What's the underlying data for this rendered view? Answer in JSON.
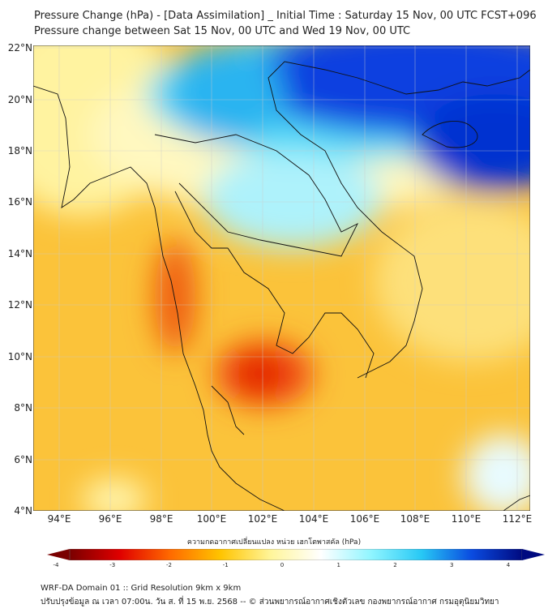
{
  "title": {
    "line1": "Pressure Change (hPa) - [Data Assimilation] _ Initial Time : Saturday 15 Nov, 00 UTC FCST+096",
    "line2": "Pressure change between Sat 15 Nov, 00 UTC and Wed 19 Nov, 00 UTC"
  },
  "lat_labels": [
    "22°N",
    "20°N",
    "18°N",
    "16°N",
    "14°N",
    "12°N",
    "10°N",
    "8°N",
    "6°N",
    "4°N"
  ],
  "lon_labels": [
    "94°E",
    "96°E",
    "98°E",
    "100°E",
    "102°E",
    "104°E",
    "106°E",
    "108°E",
    "110°E",
    "112°E"
  ],
  "colorbar": {
    "label": "ความกดอากาศเปลี่ยนแปลง หน่วย เฮกโตพาสคัล (hPa)",
    "ticks": [
      "-4",
      "-3",
      "-2",
      "-1",
      "0",
      "1",
      "2",
      "3",
      "4"
    ],
    "range": [
      -4,
      4
    ],
    "colors": [
      "#7a0000",
      "#e00000",
      "#ff6a00",
      "#ffc400",
      "#fff59a",
      "#ffffff",
      "#8ff5ff",
      "#27c8f5",
      "#0a4be0",
      "#000a80"
    ]
  },
  "footer": {
    "line1": "WRF-DA Domain 01 :: Grid Resolution 9km x 9km",
    "line2": "ปรับปรุงข้อมูล ณ เวลา 07:00น. วัน ส. ที่ 15 พ.ย. 2568 -- © ส่วนพยากรณ์อากาศเชิงตัวเลข กองพยากรณ์อากาศ กรมอุตุนิยมวิทยา"
  }
}
